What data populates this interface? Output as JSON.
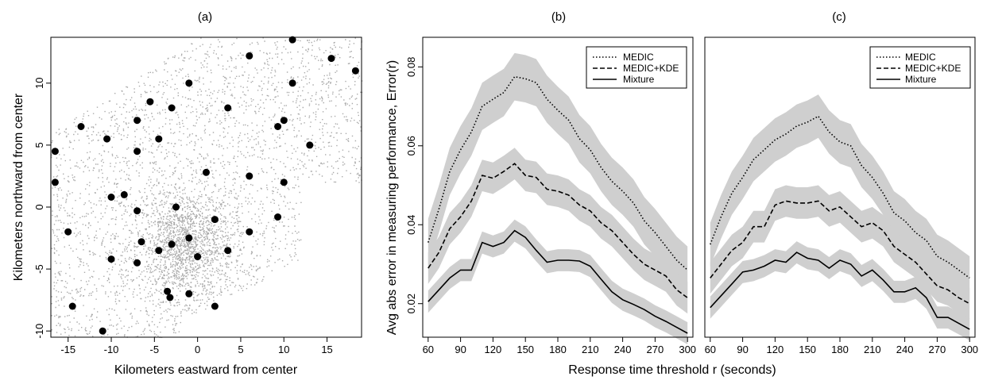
{
  "chart_data": [
    {
      "type": "scatter",
      "title": "(a)",
      "xlabel": "Kilometers eastward from center",
      "ylabel": "Kilometers northward from center",
      "xlim": [
        -17,
        19
      ],
      "ylim": [
        -10.5,
        13.7
      ],
      "xticks": [
        -15,
        -10,
        -5,
        0,
        5,
        10,
        15
      ],
      "yticks": [
        -10,
        -5,
        0,
        5,
        10
      ],
      "background_points_color": "#aaaaaa",
      "station_color": "#000000",
      "stations": [
        [
          11,
          13.5
        ],
        [
          6,
          12.2
        ],
        [
          15.5,
          12
        ],
        [
          18.3,
          11
        ],
        [
          11,
          10
        ],
        [
          -1,
          10
        ],
        [
          -5.5,
          8.5
        ],
        [
          -3,
          8
        ],
        [
          3.5,
          8
        ],
        [
          -7,
          7
        ],
        [
          10,
          7
        ],
        [
          -13.5,
          6.5
        ],
        [
          9.3,
          6.5
        ],
        [
          -10.5,
          5.5
        ],
        [
          -4.5,
          5.5
        ],
        [
          13,
          5
        ],
        [
          -16.5,
          4.5
        ],
        [
          -7,
          4.5
        ],
        [
          1,
          2.8
        ],
        [
          6,
          2.5
        ],
        [
          -16.5,
          2
        ],
        [
          10,
          2
        ],
        [
          -8.5,
          1
        ],
        [
          -10,
          0.8
        ],
        [
          -2.5,
          0
        ],
        [
          -7,
          -0.3
        ],
        [
          9.3,
          -0.8
        ],
        [
          2,
          -1
        ],
        [
          -15,
          -2
        ],
        [
          6,
          -2
        ],
        [
          -6.5,
          -2.8
        ],
        [
          -1,
          -2.5
        ],
        [
          -3,
          -3
        ],
        [
          -4.5,
          -3.5
        ],
        [
          3.5,
          -3.5
        ],
        [
          -10,
          -4.2
        ],
        [
          -7,
          -4.5
        ],
        [
          0,
          -4
        ],
        [
          -3.5,
          -6.8
        ],
        [
          -1,
          -7
        ],
        [
          -3.2,
          -7.3
        ],
        [
          -14.5,
          -8
        ],
        [
          2,
          -8
        ],
        [
          -11,
          -10
        ]
      ]
    },
    {
      "type": "line",
      "title": "(b)",
      "ylabel": "Avg abs error in measuring performance, Error(r)",
      "xlim": [
        55,
        305
      ],
      "ylim": [
        0.0115,
        0.0875
      ],
      "xticks": [
        60,
        90,
        120,
        150,
        180,
        210,
        240,
        270,
        300
      ],
      "yticks": [
        0.02,
        0.04,
        0.06,
        0.08
      ],
      "ytick_labels": [
        "0.02",
        "0.04",
        "0.06",
        "0.08"
      ],
      "band_color": "#cfcfcf",
      "legend": [
        "MEDIC",
        "MEDIC+KDE",
        "Mixture"
      ],
      "x": [
        60,
        70,
        80,
        90,
        100,
        110,
        120,
        130,
        140,
        150,
        160,
        170,
        180,
        190,
        200,
        210,
        220,
        230,
        240,
        250,
        260,
        270,
        280,
        290,
        300
      ],
      "series": [
        {
          "name": "MEDIC",
          "dash": "dotted",
          "band": 0.006,
          "values": [
            0.0355,
            0.044,
            0.0535,
            0.059,
            0.0635,
            0.07,
            0.0718,
            0.0735,
            0.0775,
            0.077,
            0.076,
            0.0718,
            0.069,
            0.0665,
            0.0618,
            0.059,
            0.0545,
            0.051,
            0.0485,
            0.0455,
            0.041,
            0.038,
            0.0345,
            0.031,
            0.0285
          ]
        },
        {
          "name": "MEDIC+KDE",
          "dash": "dashed",
          "band": 0.004,
          "values": [
            0.029,
            0.033,
            0.039,
            0.042,
            0.046,
            0.0525,
            0.0518,
            0.0535,
            0.0555,
            0.0525,
            0.052,
            0.049,
            0.0485,
            0.0475,
            0.045,
            0.0435,
            0.0405,
            0.0385,
            0.0355,
            0.0325,
            0.03,
            0.0285,
            0.027,
            0.0235,
            0.0215
          ]
        },
        {
          "name": "Mixture",
          "dash": "solid",
          "band": 0.0028,
          "values": [
            0.0205,
            0.0235,
            0.0265,
            0.0285,
            0.0285,
            0.0355,
            0.0345,
            0.0355,
            0.0385,
            0.0368,
            0.0335,
            0.0305,
            0.031,
            0.031,
            0.0308,
            0.0295,
            0.0262,
            0.023,
            0.021,
            0.0198,
            0.0185,
            0.0168,
            0.0155,
            0.014,
            0.0125
          ]
        }
      ]
    },
    {
      "type": "line",
      "title": "(c)",
      "xlim": [
        55,
        305
      ],
      "ylim": [
        0.0115,
        0.0875
      ],
      "xticks": [
        60,
        90,
        120,
        150,
        180,
        210,
        240,
        270,
        300
      ],
      "band_color": "#cfcfcf",
      "legend": [
        "MEDIC",
        "MEDIC+KDE",
        "Mixture"
      ],
      "x": [
        60,
        70,
        80,
        90,
        100,
        110,
        120,
        130,
        140,
        150,
        160,
        170,
        180,
        190,
        200,
        210,
        220,
        230,
        240,
        250,
        260,
        270,
        280,
        290,
        300
      ],
      "series": [
        {
          "name": "MEDIC",
          "dash": "dotted",
          "band": 0.0055,
          "values": [
            0.035,
            0.042,
            0.048,
            0.052,
            0.0565,
            0.059,
            0.0615,
            0.063,
            0.065,
            0.066,
            0.0675,
            0.0635,
            0.061,
            0.06,
            0.055,
            0.052,
            0.048,
            0.043,
            0.041,
            0.038,
            0.036,
            0.032,
            0.0305,
            0.0285,
            0.0265
          ]
        },
        {
          "name": "MEDIC+KDE",
          "dash": "dashed",
          "band": 0.004,
          "values": [
            0.0265,
            0.03,
            0.0335,
            0.0355,
            0.0395,
            0.0395,
            0.045,
            0.046,
            0.0455,
            0.0455,
            0.046,
            0.0435,
            0.0445,
            0.042,
            0.0395,
            0.0405,
            0.0385,
            0.0345,
            0.0325,
            0.0305,
            0.0275,
            0.0245,
            0.0235,
            0.0215,
            0.02
          ]
        },
        {
          "name": "Mixture",
          "dash": "solid",
          "band": 0.0028,
          "values": [
            0.019,
            0.022,
            0.025,
            0.028,
            0.0285,
            0.0295,
            0.031,
            0.0305,
            0.033,
            0.0315,
            0.031,
            0.029,
            0.031,
            0.03,
            0.027,
            0.0285,
            0.026,
            0.023,
            0.023,
            0.024,
            0.0215,
            0.0165,
            0.0165,
            0.015,
            0.0135
          ]
        }
      ]
    }
  ],
  "shared_xlabel": "Response time threshold r (seconds)"
}
